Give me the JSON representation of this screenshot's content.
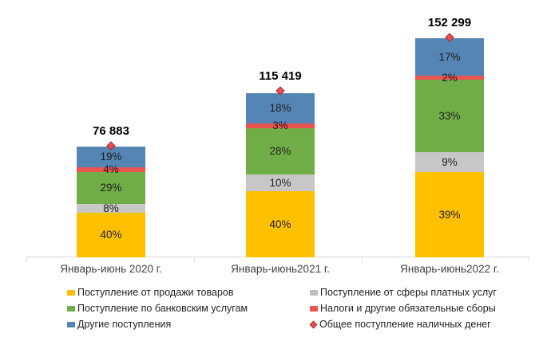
{
  "chart_data": {
    "type": "bar",
    "subtype": "stacked",
    "title": "",
    "xlabel": "",
    "ylabel": "",
    "grid": false,
    "legend_position": "bottom-two-columns",
    "categories": [
      "Январь-июнь 2020 г.",
      "Январь-июнь2021 г.",
      "Январь-июнь2022 г."
    ],
    "totals": [
      76883,
      115419,
      152299
    ],
    "total_labels": [
      "76 883",
      "115 419",
      "152 299"
    ],
    "stack_order_bottom_to_top": [
      "Поступление от продажи товаров",
      "Поступление от сферы платных услуг",
      "Поступление по банковским услугам",
      "Налоги и другие обязательные сборы",
      "Другие поступления"
    ],
    "series": [
      {
        "name": "Поступление от продажи товаров",
        "color": "#FFC000",
        "values_pct": [
          40,
          40,
          39
        ]
      },
      {
        "name": "Поступление от сферы платных услуг",
        "color": "#C7C7C7",
        "values_pct": [
          8,
          10,
          9
        ]
      },
      {
        "name": "Поступление по банковским услугам",
        "color": "#70AD47",
        "values_pct": [
          29,
          28,
          33
        ]
      },
      {
        "name": "Налоги и другие обязательные сборы",
        "color": "#EB5450",
        "values_pct": [
          4,
          3,
          2
        ]
      },
      {
        "name": "Другие поступления",
        "color": "#5585B5",
        "values_pct": [
          19,
          18,
          17
        ]
      }
    ],
    "total_series": {
      "name": "Общее поступление наличных денег",
      "marker": "diamond",
      "fill": "#ED4C52",
      "border": "#9E2F36"
    },
    "legend_column_major": [
      {
        "label": "Поступление от продажи товаров",
        "marker": "rect",
        "color": "#FFC000"
      },
      {
        "label": "Поступление по банковским услугам",
        "marker": "rect",
        "color": "#70AD47"
      },
      {
        "label": "Другие поступления",
        "marker": "rect",
        "color": "#5585B5"
      },
      {
        "label": "Поступление от сферы платных услуг",
        "marker": "rect",
        "color": "#C0C0C0"
      },
      {
        "label": "Налоги и другие обязательные сборы",
        "marker": "rect",
        "color": "#EB5450"
      },
      {
        "label": "Общее поступление наличных денег",
        "marker": "diamond",
        "color": "#ED4C52",
        "border": "#9E2F36"
      }
    ],
    "axis": {
      "baseline_color": "#D9D9D9",
      "category_label_color": "#3F3F3F"
    }
  }
}
